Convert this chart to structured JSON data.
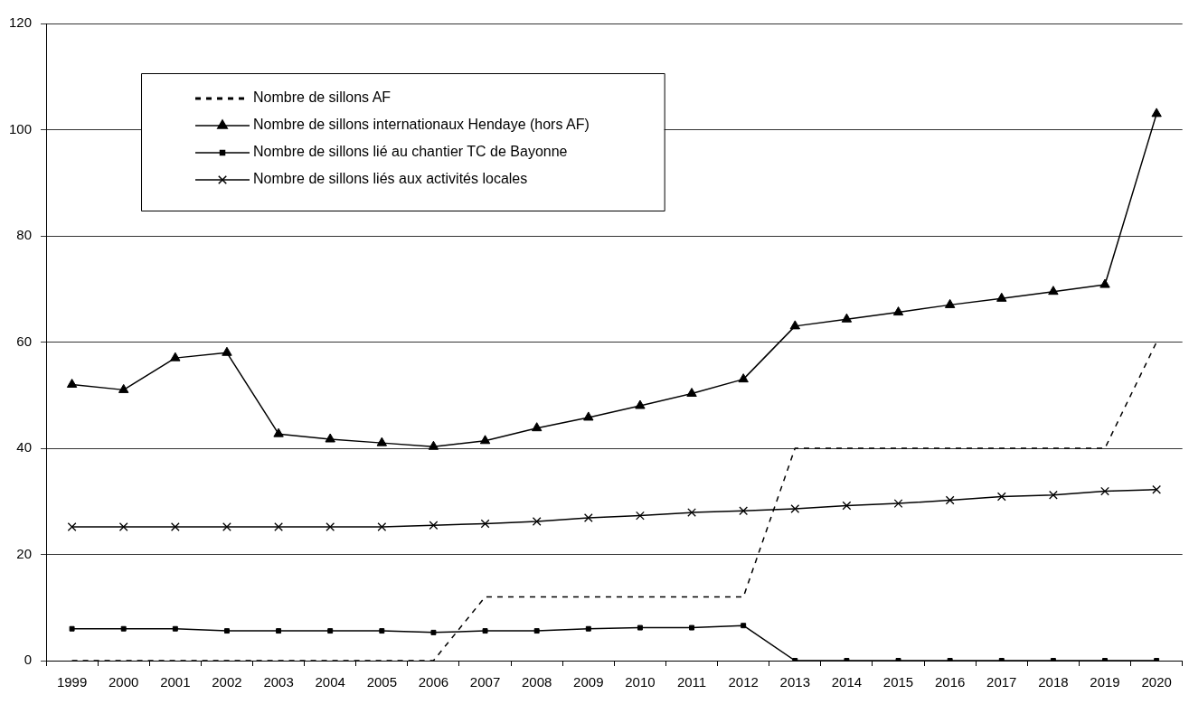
{
  "chart_data": {
    "type": "line",
    "categories": [
      "1999",
      "2000",
      "2001",
      "2002",
      "2003",
      "2004",
      "2005",
      "2006",
      "2007",
      "2008",
      "2009",
      "2010",
      "2011",
      "2012",
      "2013",
      "2014",
      "2015",
      "2016",
      "2017",
      "2018",
      "2019",
      "2020"
    ],
    "series": [
      {
        "name": "Nombre de sillons AF",
        "color": "#000000",
        "marker": "none",
        "line_style": "dotted",
        "values": [
          0,
          0,
          0,
          0,
          0,
          0,
          0,
          0,
          12,
          12,
          12,
          12,
          12,
          12,
          40,
          40,
          40,
          40,
          40,
          40,
          40,
          60
        ]
      },
      {
        "name": "Nombre de sillons internationaux Hendaye (hors AF)",
        "color": "#000000",
        "marker": "triangle",
        "line_style": "solid",
        "values": [
          52,
          51,
          57,
          58,
          42.7,
          41.7,
          41,
          40.3,
          41.4,
          43.8,
          45.8,
          48,
          50.3,
          53,
          63,
          64.3,
          65.6,
          67,
          68.2,
          69.5,
          70.8,
          103
        ]
      },
      {
        "name": "Nombre de sillons lié au chantier TC de Bayonne",
        "color": "#000000",
        "marker": "square",
        "line_style": "solid",
        "values": [
          6,
          6,
          6,
          5.6,
          5.6,
          5.6,
          5.6,
          5.3,
          5.6,
          5.6,
          6,
          6.2,
          6.2,
          6.6,
          0,
          0,
          0,
          0,
          0,
          0,
          0,
          0
        ]
      },
      {
        "name": "Nombre de sillons liés aux activités locales",
        "color": "#000000",
        "marker": "cross",
        "line_style": "solid",
        "values": [
          25.2,
          25.2,
          25.2,
          25.2,
          25.2,
          25.2,
          25.2,
          25.5,
          25.8,
          26.2,
          26.9,
          27.3,
          27.9,
          28.2,
          28.6,
          29.2,
          29.6,
          30.2,
          30.9,
          31.2,
          31.9,
          32.2
        ]
      }
    ],
    "ylim": [
      0,
      120
    ],
    "yticks": [
      0,
      20,
      40,
      60,
      80,
      100,
      120
    ],
    "grid": "y",
    "legend": "top left"
  }
}
